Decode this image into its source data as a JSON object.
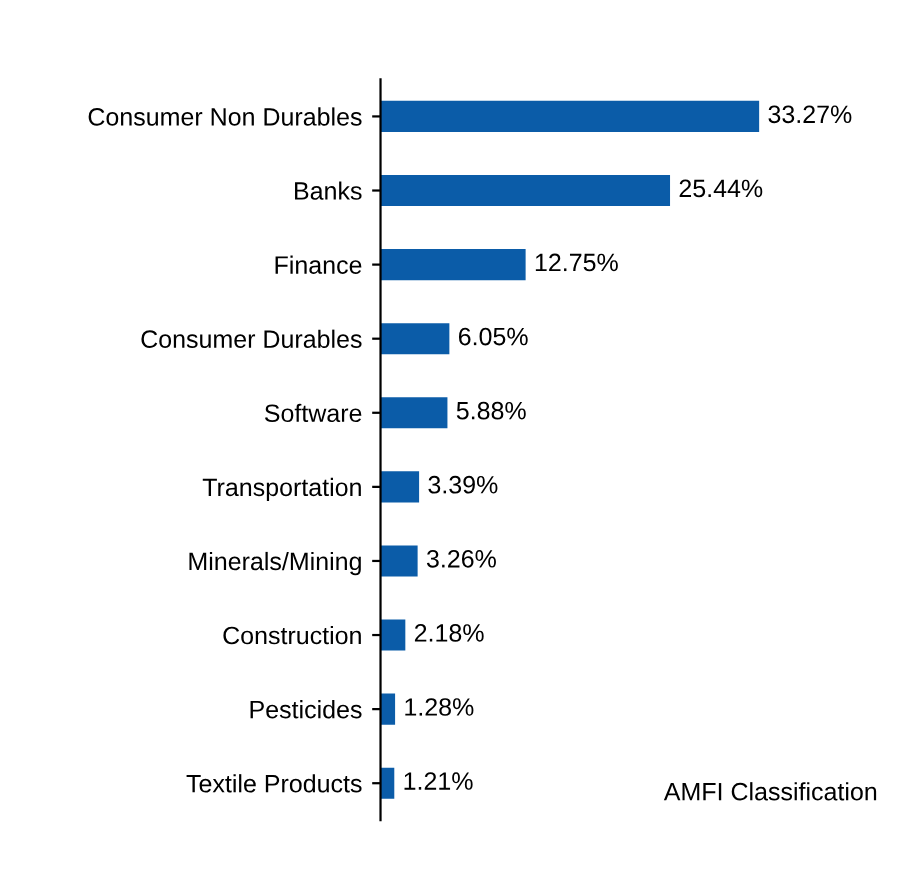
{
  "chart_data": {
    "type": "bar",
    "orientation": "horizontal",
    "categories": [
      "Consumer Non Durables",
      "Banks",
      "Finance",
      "Consumer Durables",
      "Software",
      "Transportation",
      "Minerals/Mining",
      "Construction",
      "Pesticides",
      "Textile Products"
    ],
    "values": [
      33.27,
      25.44,
      12.75,
      6.05,
      5.88,
      3.39,
      3.26,
      2.18,
      1.28,
      1.21
    ],
    "color": "#0b5ca8",
    "value_labels": [
      "33.27%",
      "25.44%",
      "12.75%",
      "6.05%",
      "5.88%",
      "3.39%",
      "3.26%",
      "2.18%",
      "1.28%",
      "1.21%"
    ],
    "annotations": [
      "AMFI Classification"
    ],
    "grid": false,
    "legend": false
  }
}
